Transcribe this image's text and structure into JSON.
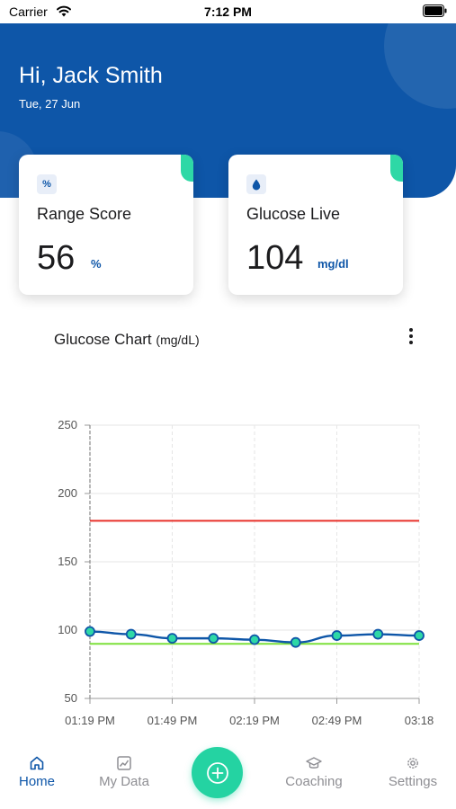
{
  "status_bar": {
    "carrier": "Carrier",
    "time": "7:12 PM"
  },
  "header": {
    "greeting": "Hi, Jack Smith",
    "date": "Tue, 27 Jun",
    "background_color": "#0e56a8"
  },
  "cards": {
    "range_score": {
      "icon_text": "%",
      "label": "Range Score",
      "value": "56",
      "unit": "%"
    },
    "glucose_live": {
      "icon": "drop-icon",
      "label": "Glucose Live",
      "value": "104",
      "unit": "mg/dl"
    }
  },
  "chart_section": {
    "title": "Glucose Chart",
    "unit": "(mg/dL)"
  },
  "chart_data": {
    "type": "line",
    "title": "Glucose Chart (mg/dL)",
    "xlabel": "",
    "ylabel": "",
    "x_tick_labels": [
      "01:19 PM",
      "01:49 PM",
      "02:19 PM",
      "02:49 PM",
      "03:18"
    ],
    "y_ticks": [
      250,
      200,
      150,
      100,
      50
    ],
    "ylim": [
      50,
      250
    ],
    "grid": true,
    "x_minutes": [
      0,
      15,
      30,
      45,
      60,
      75,
      90,
      105,
      120
    ],
    "series": [
      {
        "values": [
          99,
          97,
          94,
          94,
          93,
          91,
          96,
          97,
          96
        ],
        "color": "#0e56a8",
        "marker_color": "#2ed8a6"
      }
    ],
    "reference_lines": [
      {
        "value": 180,
        "color": "#e8312a"
      },
      {
        "value": 90,
        "color": "#7ce03a"
      }
    ]
  },
  "tab_bar": {
    "tabs": [
      {
        "label": "Home",
        "icon": "home-icon",
        "active": true
      },
      {
        "label": "My Data",
        "icon": "chart-icon",
        "active": false
      },
      {
        "label": "Coaching",
        "icon": "graduation-cap-icon",
        "active": false
      },
      {
        "label": "Settings",
        "icon": "gear-icon",
        "active": false
      }
    ],
    "fab_icon": "plus-circle-icon",
    "active_color": "#0e56a8",
    "fab_color": "#24d3a2"
  }
}
